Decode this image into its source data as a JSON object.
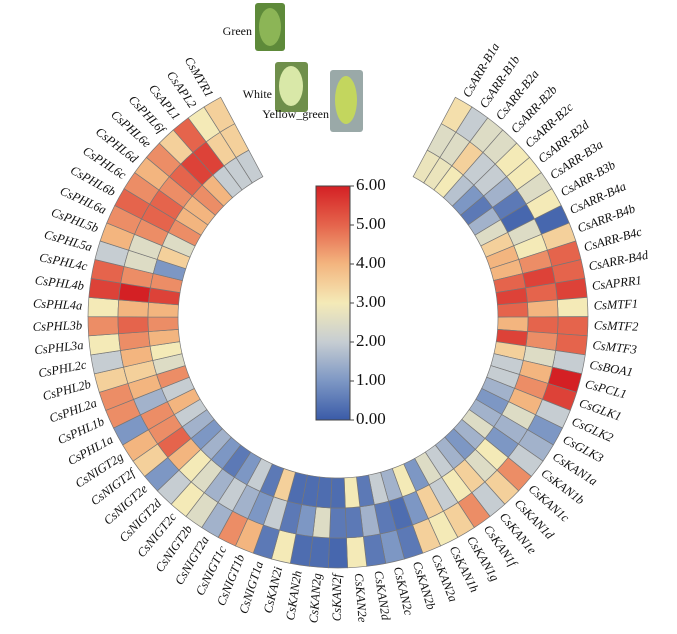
{
  "chart_data": {
    "type": "circular-heatmap",
    "categories": [
      "CsARR-B1a",
      "CsARR-B1b",
      "CsARR-B2a",
      "CsARR-B2b",
      "CsARR-B2c",
      "CsARR-B2d",
      "CsARR-B3a",
      "CsARR-B3b",
      "CsARR-B4a",
      "CsARR-B4b",
      "CsARR-B4c",
      "CsARR-B4d",
      "CsAPRR1",
      "CsMTF1",
      "CsMTF2",
      "CsMTF3",
      "CsBOA1",
      "CsPCL1",
      "CsGLK1",
      "CsGLK2",
      "CsGLK3",
      "CsKAN1a",
      "CsKAN1b",
      "CsKAN1c",
      "CsKAN1d",
      "CsKAN1e",
      "CsKAN1f",
      "CsKAN1g",
      "CsKAN1h",
      "CsKAN2a",
      "CsKAN2b",
      "CsKAN2c",
      "CsKAN2d",
      "CsKAN2e",
      "CsKAN2f",
      "CsKAN2g",
      "CsKAN2h",
      "CsKAN2i",
      "CsNIGT1a",
      "CsNIGT1b",
      "CsNIGT1c",
      "CsNIGT2a",
      "CsNIGT2b",
      "CsNIGT2c",
      "CsNIGT2d",
      "CsNIGT2e",
      "CsNIGT2f",
      "CsNIGT2g",
      "CsPHL1a",
      "CsPHL1b",
      "CsPHL2a",
      "CsPHL2b",
      "CsPHL2c",
      "CsPHL3a",
      "CsPHL3b",
      "CsPHL4a",
      "CsPHL4b",
      "CsPHL4c",
      "CsPHL5a",
      "CsPHL5b",
      "CsPHL6a",
      "CsPHL6b",
      "CsPHL6c",
      "CsPHL6d",
      "CsPHL6e",
      "CsPHL6f",
      "CsAPL1",
      "CsAPL2",
      "CsMYR1"
    ],
    "series": [
      {
        "name": "Green",
        "values": [
          3.2,
          2.0,
          2.5,
          2.5,
          3.0,
          3.0,
          2.5,
          3.0,
          0.2,
          3.5,
          5.0,
          5.0,
          5.5,
          3.0,
          5.0,
          5.0,
          2.0,
          6.0,
          5.5,
          2.0,
          1.0,
          1.5,
          2.0,
          4.5,
          3.5,
          2.0,
          4.5,
          3.5,
          3.0,
          3.5,
          0.5,
          1.0,
          0.5,
          3.0,
          0.2,
          0.3,
          0.3,
          3.0,
          0.5,
          4.0,
          4.5,
          1.5,
          2.5,
          3.0,
          2.0,
          1.0,
          3.5,
          4.0,
          1.0,
          4.5,
          4.5,
          3.5,
          2.0,
          3.0,
          4.5,
          3.0,
          5.5,
          5.0,
          2.0,
          4.0,
          4.5,
          5.0,
          4.5,
          4.0,
          4.5,
          3.5,
          5.0,
          3.0,
          3.5
        ]
      },
      {
        "name": "White",
        "values": [
          2.5,
          2.5,
          3.5,
          2.0,
          2.0,
          1.5,
          0.5,
          0.2,
          2.5,
          3.0,
          4.5,
          5.5,
          5.0,
          4.0,
          5.0,
          4.5,
          2.5,
          4.0,
          4.5,
          4.0,
          2.5,
          1.5,
          1.0,
          3.0,
          2.5,
          3.5,
          3.0,
          2.0,
          3.5,
          1.0,
          0.3,
          0.5,
          1.5,
          0.5,
          0.5,
          2.5,
          1.0,
          0.5,
          2.0,
          1.0,
          1.5,
          2.0,
          1.5,
          2.5,
          3.0,
          4.0,
          5.0,
          4.5,
          4.5,
          1.5,
          4.0,
          3.5,
          4.0,
          4.5,
          5.0,
          4.0,
          6.0,
          4.5,
          2.5,
          2.5,
          4.5,
          5.0,
          5.0,
          4.5,
          5.0,
          5.5,
          5.5,
          3.5,
          3.5
        ]
      },
      {
        "name": "Yellow_green",
        "values": [
          2.8,
          2.8,
          3.0,
          1.8,
          1.0,
          0.5,
          1.5,
          2.5,
          3.5,
          4.0,
          4.0,
          5.0,
          5.5,
          5.0,
          4.0,
          5.5,
          3.5,
          2.0,
          2.0,
          1.5,
          1.0,
          1.5,
          2.5,
          1.5,
          1.0,
          1.5,
          2.0,
          2.5,
          1.0,
          3.0,
          1.5,
          2.0,
          0.5,
          3.0,
          0.3,
          0.3,
          0.3,
          0.3,
          3.5,
          0.5,
          2.0,
          1.0,
          0.5,
          1.0,
          1.5,
          1.0,
          1.5,
          2.0,
          4.0,
          2.0,
          4.5,
          2.5,
          3.0,
          4.0,
          4.5,
          4.0,
          5.5,
          4.5,
          1.0,
          3.5,
          2.5,
          4.5,
          4.0,
          4.0,
          4.5,
          4.0,
          2.0,
          2.0,
          2.0
        ]
      }
    ],
    "colormap": [
      "#3a5ba8",
      "#7d97c4",
      "#c6cdd2",
      "#f4eab7",
      "#f3b57f",
      "#e5644c",
      "#d42024"
    ],
    "clim": [
      0,
      6
    ],
    "cticks": [
      {
        "value": 0,
        "label": "0.00"
      },
      {
        "value": 1,
        "label": "1.00"
      },
      {
        "value": 2,
        "label": "2.00"
      },
      {
        "value": 3,
        "label": "3.00"
      },
      {
        "value": 4,
        "label": "4.00"
      },
      {
        "value": 5,
        "label": "5.00"
      },
      {
        "value": 6,
        "label": "6.00"
      }
    ]
  }
}
